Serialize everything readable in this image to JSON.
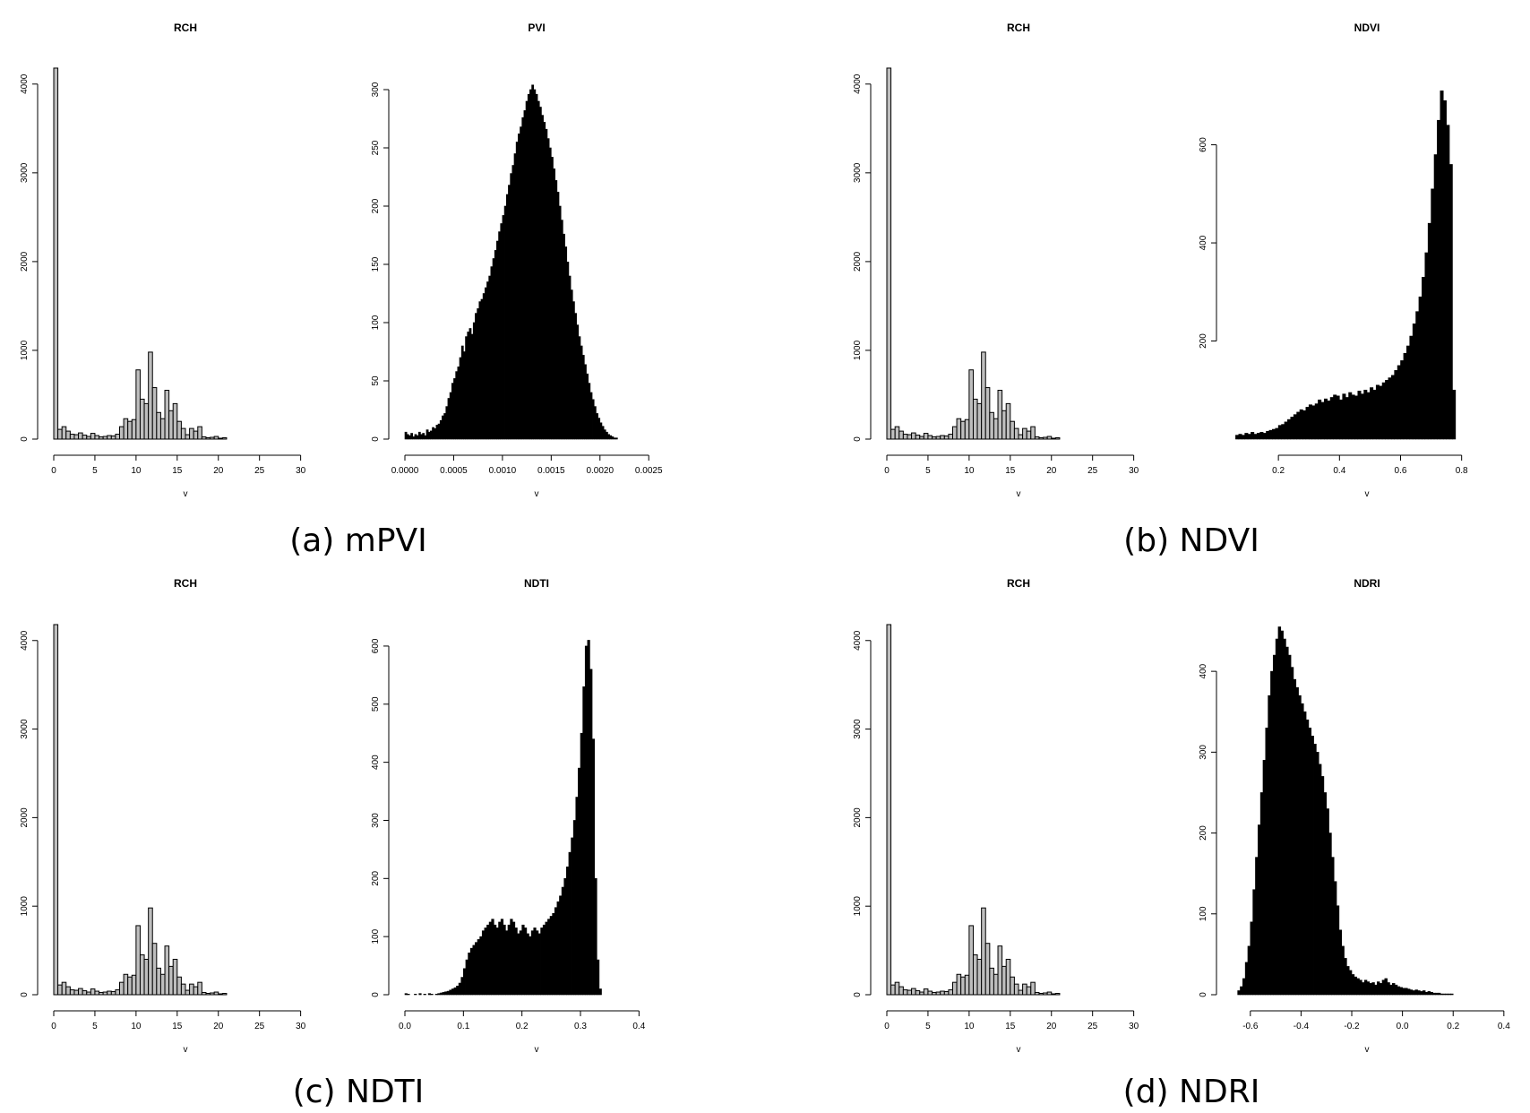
{
  "chart_data": [
    {
      "type": "bar",
      "title": "RCH",
      "xlabel": "v",
      "xlim": [
        0,
        32
      ],
      "ylim": [
        0,
        4200
      ],
      "xticks": [
        "0",
        "5",
        "10",
        "15",
        "20",
        "25",
        "30"
      ],
      "yticks": [
        "0",
        "1000",
        "2000",
        "3000",
        "4000"
      ],
      "bin_width": 0.5,
      "bin_start": 0,
      "values": [
        4180,
        110,
        140,
        90,
        55,
        50,
        70,
        45,
        30,
        65,
        40,
        25,
        30,
        40,
        35,
        55,
        140,
        230,
        200,
        220,
        780,
        450,
        400,
        980,
        580,
        300,
        230,
        550,
        320,
        400,
        200,
        120,
        50,
        120,
        90,
        140,
        25,
        15,
        20,
        30,
        10,
        15
      ]
    },
    {
      "type": "bar",
      "title": "PVI",
      "xlabel": "v",
      "xlim": [
        0,
        0.0027
      ],
      "ylim": [
        0,
        320
      ],
      "xticks": [
        "0.0000",
        "0.0005",
        "0.0010",
        "0.0015",
        "0.0020",
        "0.0025"
      ],
      "yticks": [
        "0",
        "50",
        "100",
        "150",
        "200",
        "250",
        "300"
      ],
      "bin_width": 2e-05,
      "bin_start": 0,
      "values": [
        6,
        4,
        3,
        5,
        2,
        4,
        3,
        6,
        4,
        5,
        3,
        8,
        6,
        7,
        10,
        9,
        12,
        13,
        16,
        20,
        22,
        28,
        35,
        40,
        48,
        52,
        58,
        62,
        70,
        80,
        75,
        88,
        92,
        95,
        90,
        100,
        108,
        112,
        118,
        120,
        125,
        130,
        135,
        140,
        148,
        155,
        162,
        170,
        178,
        185,
        192,
        200,
        210,
        218,
        228,
        235,
        245,
        255,
        262,
        268,
        276,
        282,
        290,
        296,
        300,
        304,
        300,
        296,
        290,
        285,
        278,
        272,
        266,
        258,
        250,
        242,
        232,
        222,
        212,
        200,
        188,
        176,
        165,
        152,
        140,
        128,
        118,
        108,
        98,
        88,
        80,
        72,
        64,
        56,
        48,
        40,
        34,
        28,
        22,
        18,
        14,
        11,
        8,
        6,
        4,
        3,
        2,
        1,
        1
      ]
    },
    {
      "type": "bar",
      "title": "RCH",
      "xlabel": "v",
      "xlim": [
        0,
        32
      ],
      "ylim": [
        0,
        4200
      ],
      "xticks": [
        "0",
        "5",
        "10",
        "15",
        "20",
        "25",
        "30"
      ],
      "yticks": [
        "0",
        "1000",
        "2000",
        "3000",
        "4000"
      ],
      "bin_width": 0.5,
      "bin_start": 0,
      "values": [
        4180,
        110,
        140,
        90,
        55,
        50,
        70,
        45,
        30,
        65,
        40,
        25,
        30,
        40,
        35,
        55,
        140,
        230,
        200,
        220,
        780,
        450,
        400,
        980,
        580,
        300,
        230,
        550,
        320,
        400,
        200,
        120,
        50,
        120,
        90,
        140,
        25,
        15,
        20,
        30,
        10,
        15
      ]
    },
    {
      "type": "bar",
      "title": "NDVI",
      "xlabel": "v",
      "xlim": [
        0.05,
        0.93
      ],
      "ylim": [
        0,
        760
      ],
      "xticks": [
        "0.2",
        "0.4",
        "0.6",
        "0.8"
      ],
      "yticks": [
        "200",
        "400",
        "600"
      ],
      "bin_width": 0.01,
      "bin_start": 0.06,
      "values": [
        8,
        10,
        8,
        12,
        10,
        14,
        10,
        12,
        14,
        12,
        16,
        18,
        20,
        22,
        28,
        30,
        35,
        40,
        45,
        50,
        55,
        60,
        58,
        65,
        70,
        68,
        72,
        80,
        75,
        82,
        78,
        85,
        90,
        88,
        80,
        92,
        85,
        95,
        90,
        88,
        98,
        92,
        100,
        95,
        105,
        100,
        110,
        108,
        115,
        120,
        125,
        130,
        140,
        150,
        160,
        175,
        190,
        210,
        235,
        260,
        290,
        330,
        380,
        440,
        510,
        580,
        650,
        710,
        690,
        640,
        560,
        100
      ]
    },
    {
      "type": "bar",
      "title": "RCH",
      "xlabel": "v",
      "xlim": [
        0,
        32
      ],
      "ylim": [
        0,
        4200
      ],
      "xticks": [
        "0",
        "5",
        "10",
        "15",
        "20",
        "25",
        "30"
      ],
      "yticks": [
        "0",
        "1000",
        "2000",
        "3000",
        "4000"
      ],
      "bin_width": 0.5,
      "bin_start": 0,
      "values": [
        4180,
        110,
        140,
        90,
        55,
        50,
        70,
        45,
        30,
        65,
        40,
        25,
        30,
        40,
        35,
        55,
        140,
        230,
        200,
        220,
        780,
        450,
        400,
        980,
        580,
        300,
        230,
        550,
        320,
        400,
        200,
        120,
        50,
        120,
        90,
        140,
        25,
        15,
        20,
        30,
        10,
        15
      ]
    },
    {
      "type": "bar",
      "title": "NDTI",
      "xlabel": "v",
      "xlim": [
        0,
        0.45
      ],
      "ylim": [
        0,
        640
      ],
      "xticks": [
        "0.0",
        "0.1",
        "0.2",
        "0.3",
        "0.4"
      ],
      "yticks": [
        "0",
        "100",
        "200",
        "300",
        "400",
        "500",
        "600"
      ],
      "bin_width": 0.004,
      "bin_start": 0,
      "values": [
        2,
        1,
        0,
        0,
        1,
        0,
        2,
        0,
        1,
        0,
        2,
        1,
        0,
        1,
        2,
        3,
        4,
        5,
        6,
        8,
        10,
        12,
        15,
        20,
        30,
        45,
        60,
        72,
        80,
        85,
        90,
        95,
        100,
        110,
        115,
        120,
        125,
        130,
        120,
        115,
        125,
        130,
        120,
        110,
        120,
        130,
        125,
        115,
        105,
        110,
        120,
        115,
        105,
        100,
        110,
        115,
        110,
        105,
        115,
        120,
        125,
        130,
        135,
        140,
        150,
        160,
        170,
        185,
        200,
        220,
        245,
        270,
        300,
        340,
        390,
        450,
        530,
        600,
        610,
        560,
        440,
        200,
        60,
        10
      ]
    },
    {
      "type": "bar",
      "title": "RCH",
      "xlabel": "v",
      "xlim": [
        0,
        32
      ],
      "ylim": [
        0,
        4200
      ],
      "xticks": [
        "0",
        "5",
        "10",
        "15",
        "20",
        "25",
        "30"
      ],
      "yticks": [
        "0",
        "1000",
        "2000",
        "3000",
        "4000"
      ],
      "bin_width": 0.5,
      "bin_start": 0,
      "values": [
        4180,
        110,
        140,
        90,
        55,
        50,
        70,
        45,
        30,
        65,
        40,
        25,
        30,
        40,
        35,
        55,
        140,
        230,
        200,
        220,
        780,
        450,
        400,
        980,
        580,
        300,
        230,
        550,
        320,
        400,
        200,
        120,
        50,
        120,
        90,
        140,
        25,
        15,
        20,
        30,
        10,
        15
      ]
    },
    {
      "type": "bar",
      "title": "NDRI",
      "xlabel": "v",
      "xlim": [
        -0.67,
        0.39
      ],
      "ylim": [
        0,
        460
      ],
      "xticks": [
        "-0.6",
        "-0.4",
        "-0.2",
        "0.0",
        "0.2",
        "0.4"
      ],
      "yticks": [
        "0",
        "100",
        "200",
        "300",
        "400"
      ],
      "bin_width": 0.01,
      "bin_start": -0.65,
      "values": [
        5,
        10,
        20,
        40,
        60,
        90,
        130,
        170,
        210,
        250,
        290,
        330,
        370,
        400,
        420,
        440,
        455,
        450,
        440,
        430,
        420,
        405,
        390,
        380,
        370,
        360,
        350,
        340,
        330,
        320,
        310,
        300,
        285,
        270,
        250,
        230,
        200,
        170,
        140,
        110,
        80,
        60,
        45,
        35,
        30,
        25,
        22,
        20,
        18,
        15,
        18,
        16,
        14,
        15,
        12,
        16,
        14,
        18,
        20,
        15,
        12,
        14,
        12,
        10,
        9,
        8,
        8,
        7,
        6,
        5,
        6,
        5,
        4,
        5,
        3,
        4,
        3,
        2,
        2,
        2,
        1,
        1,
        1,
        1,
        1,
        0,
        0
      ]
    }
  ],
  "captions": [
    "(a) mPVI",
    "(b) NDVI",
    "(c) NDTI",
    "(d) NDRI"
  ]
}
